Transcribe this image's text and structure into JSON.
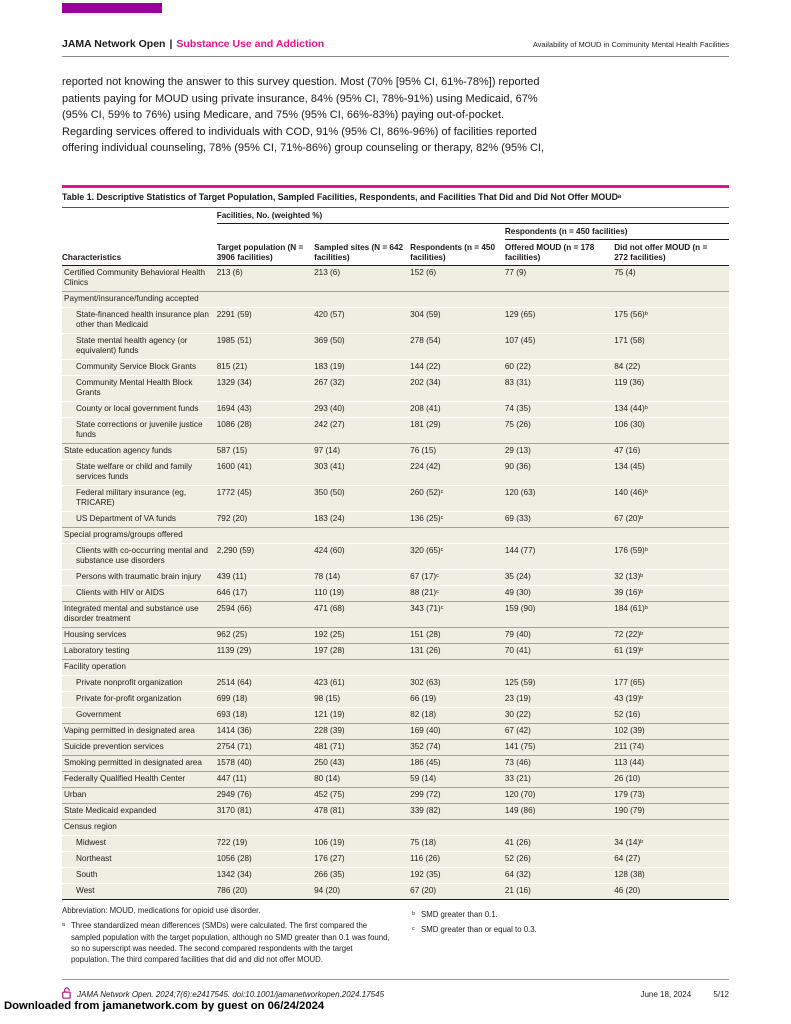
{
  "colors": {
    "brand_magenta": "#e0168c",
    "brand_purple": "#990098",
    "row_bg": "#efeee2"
  },
  "page": {
    "downloaded_note": "Downloaded from jamanetwork.com by guest on 06/24/2024"
  },
  "header": {
    "journal": "JAMA Network Open",
    "separator": "|",
    "section": "Substance Use and Addiction",
    "running_title": "Availability of MOUD in Community Mental Health Facilities"
  },
  "body_paragraph": {
    "lines": [
      "reported not knowing the answer to this survey question. Most (70% [95% CI, 61%-78%]) reported",
      "patients paying for MOUD using private insurance, 84% (95% CI, 78%-91%) using Medicaid, 67%",
      "(95% CI, 59% to 76%) using Medicare, and 75% (95% CI, 66%-83%) paying out-of-pocket.",
      "Regarding services offered to individuals with COD, 91% (95% CI, 86%-96%) of facilities reported",
      "offering individual counseling, 78% (95% CI, 71%-86%) group counseling or therapy, 82% (95% CI,"
    ]
  },
  "table": {
    "title": "Table 1. Descriptive Statistics of Target Population, Sampled Facilities, Respondents, and Facilities That Did and Did Not Offer MOUDᵃ",
    "col_group_header": "Facilities, No. (weighted %)",
    "sub_group_header": "Respondents (n = 450 facilities)",
    "columns": [
      "Characteristics",
      "Target population (N = 3906 facilities)",
      "Sampled sites (N = 642 facilities)",
      "Respondents (n = 450 facilities)",
      "Offered MOUD (n = 178 facilities)",
      "Did not offer MOUD (n = 272 facilities)"
    ],
    "rows": [
      {
        "type": "data",
        "indent": 0,
        "rule": "light",
        "label": "Certified Community Behavioral Health Clinics",
        "values": [
          "213 (6)",
          "213 (6)",
          "152 (6)",
          "77 (9)",
          "75 (4)"
        ]
      },
      {
        "type": "section",
        "rule": "dark",
        "label": "Payment/insurance/funding accepted"
      },
      {
        "type": "data",
        "indent": 1,
        "rule": "light",
        "label": "State-financed health insurance plan other than Medicaid",
        "values": [
          "2291 (59)",
          "420 (57)",
          "304 (59)",
          "129 (65)",
          "175 (56)ᵇ"
        ]
      },
      {
        "type": "data",
        "indent": 1,
        "rule": "light",
        "label": "State mental health agency (or equivalent) funds",
        "values": [
          "1985 (51)",
          "369 (50)",
          "278 (54)",
          "107 (45)",
          "171 (58)"
        ]
      },
      {
        "type": "data",
        "indent": 1,
        "rule": "light",
        "label": "Community Service Block Grants",
        "values": [
          "815 (21)",
          "183 (19)",
          "144 (22)",
          "60 (22)",
          "84 (22)"
        ]
      },
      {
        "type": "data",
        "indent": 1,
        "rule": "light",
        "label": "Community Mental Health Block Grants",
        "values": [
          "1329 (34)",
          "267 (32)",
          "202 (34)",
          "83 (31)",
          "119 (36)"
        ]
      },
      {
        "type": "data",
        "indent": 1,
        "rule": "light",
        "label": "County or local government funds",
        "values": [
          "1694 (43)",
          "293 (40)",
          "208 (41)",
          "74 (35)",
          "134 (44)ᵇ"
        ]
      },
      {
        "type": "data",
        "indent": 1,
        "rule": "light",
        "label": "State corrections or juvenile justice funds",
        "values": [
          "1086 (28)",
          "242 (27)",
          "181 (29)",
          "75 (26)",
          "106 (30)"
        ]
      },
      {
        "type": "data",
        "indent": 0,
        "rule": "dark",
        "label": "State education agency funds",
        "values": [
          "587 (15)",
          "97 (14)",
          "76 (15)",
          "29 (13)",
          "47 (16)"
        ]
      },
      {
        "type": "data",
        "indent": 1,
        "rule": "light",
        "label": "State welfare or child and family services funds",
        "values": [
          "1600 (41)",
          "303 (41)",
          "224 (42)",
          "90 (36)",
          "134 (45)"
        ]
      },
      {
        "type": "data",
        "indent": 1,
        "rule": "light",
        "label": "Federal military insurance (eg, TRICARE)",
        "values": [
          "1772 (45)",
          "350 (50)",
          "260 (52)ᶜ",
          "120 (63)",
          "140 (46)ᵇ"
        ]
      },
      {
        "type": "data",
        "indent": 1,
        "rule": "light",
        "label": "US Department of VA funds",
        "values": [
          "792 (20)",
          "183 (24)",
          "136 (25)ᶜ",
          "69 (33)",
          "67 (20)ᵇ"
        ]
      },
      {
        "type": "section",
        "rule": "dark",
        "label": "Special programs/groups offered"
      },
      {
        "type": "data",
        "indent": 1,
        "rule": "light",
        "label": "Clients with co-occurring mental and substance use disorders",
        "values": [
          "2,290 (59)",
          "424 (60)",
          "320 (65)ᶜ",
          "144 (77)",
          "176 (59)ᵇ"
        ]
      },
      {
        "type": "data",
        "indent": 1,
        "rule": "light",
        "label": "Persons with traumatic brain injury",
        "values": [
          "439 (11)",
          "78 (14)",
          "67 (17)ᶜ",
          "35 (24)",
          "32 (13)ᵇ"
        ]
      },
      {
        "type": "data",
        "indent": 1,
        "rule": "light",
        "label": "Clients with HIV or AIDS",
        "values": [
          "646 (17)",
          "110 (19)",
          "88 (21)ᶜ",
          "49 (30)",
          "39 (16)ᵇ"
        ]
      },
      {
        "type": "data",
        "indent": 0,
        "rule": "dark",
        "label": "Integrated mental and substance use disorder treatment",
        "values": [
          "2594 (66)",
          "471 (68)",
          "343 (71)ᶜ",
          "159 (90)",
          "184 (61)ᵇ"
        ]
      },
      {
        "type": "data",
        "indent": 0,
        "rule": "dark",
        "label": "Housing services",
        "values": [
          "962 (25)",
          "192 (25)",
          "151 (28)",
          "79 (40)",
          "72 (22)ᵇ"
        ]
      },
      {
        "type": "data",
        "indent": 0,
        "rule": "dark",
        "label": "Laboratory testing",
        "values": [
          "1139 (29)",
          "197 (28)",
          "131 (26)",
          "70 (41)",
          "61 (19)ᵇ"
        ]
      },
      {
        "type": "section",
        "rule": "dark",
        "label": "Facility operation"
      },
      {
        "type": "data",
        "indent": 1,
        "rule": "light",
        "label": "Private nonprofit organization",
        "values": [
          "2514 (64)",
          "423 (61)",
          "302 (63)",
          "125 (59)",
          "177 (65)"
        ]
      },
      {
        "type": "data",
        "indent": 1,
        "rule": "light",
        "label": "Private for-profit organization",
        "values": [
          "699 (18)",
          "98 (15)",
          "66 (19)",
          "23 (19)",
          "43 (19)ᵇ"
        ]
      },
      {
        "type": "data",
        "indent": 1,
        "rule": "light",
        "label": "Government",
        "values": [
          "693 (18)",
          "121 (19)",
          "82 (18)",
          "30 (22)",
          "52 (16)"
        ]
      },
      {
        "type": "data",
        "indent": 0,
        "rule": "dark",
        "label": "Vaping permitted in designated area",
        "values": [
          "1414 (36)",
          "228 (39)",
          "169 (40)",
          "67 (42)",
          "102 (39)"
        ]
      },
      {
        "type": "data",
        "indent": 0,
        "rule": "dark",
        "label": "Suicide prevention services",
        "values": [
          "2754 (71)",
          "481 (71)",
          "352 (74)",
          "141 (75)",
          "211 (74)"
        ]
      },
      {
        "type": "data",
        "indent": 0,
        "rule": "dark",
        "label": "Smoking permitted in designated area",
        "values": [
          "1578 (40)",
          "250 (43)",
          "186 (45)",
          "73 (46)",
          "113 (44)"
        ]
      },
      {
        "type": "data",
        "indent": 0,
        "rule": "dark",
        "label": "Federally Qualified Health Center",
        "values": [
          "447 (11)",
          "80 (14)",
          "59 (14)",
          "33 (21)",
          "26 (10)"
        ]
      },
      {
        "type": "data",
        "indent": 0,
        "rule": "dark",
        "label": "Urban",
        "values": [
          "2949 (76)",
          "452 (75)",
          "299 (72)",
          "120 (70)",
          "179 (73)"
        ]
      },
      {
        "type": "data",
        "indent": 0,
        "rule": "dark",
        "label": "State Medicaid expanded",
        "values": [
          "3170 (81)",
          "478 (81)",
          "339 (82)",
          "149 (86)",
          "190 (79)"
        ]
      },
      {
        "type": "section",
        "rule": "dark",
        "label": "Census region"
      },
      {
        "type": "data",
        "indent": 1,
        "rule": "light",
        "label": "Midwest",
        "values": [
          "722 (19)",
          "106 (19)",
          "75 (18)",
          "41 (26)",
          "34 (14)ᵇ"
        ]
      },
      {
        "type": "data",
        "indent": 1,
        "rule": "light",
        "label": "Northeast",
        "values": [
          "1056 (28)",
          "176 (27)",
          "116 (26)",
          "52 (26)",
          "64 (27)"
        ]
      },
      {
        "type": "data",
        "indent": 1,
        "rule": "light",
        "label": "South",
        "values": [
          "1342 (34)",
          "266 (35)",
          "192 (35)",
          "64 (32)",
          "128 (38)"
        ]
      },
      {
        "type": "data",
        "indent": 1,
        "rule": "light",
        "label": "West",
        "values": [
          "786 (20)",
          "94 (20)",
          "67 (20)",
          "21 (16)",
          "46 (20)"
        ]
      }
    ],
    "footnotes": {
      "abbreviation": "Abbreviation: MOUD, medications for opioid use disorder.",
      "a_marker": "ᵃ",
      "a": "Three standardized mean differences (SMDs) were calculated. The first compared the sampled population with the target population, although no SMD greater than 0.1 was found, so no superscript was needed. The second compared respondents with the target population. The third compared facilities that did and did not offer MOUD.",
      "b_marker": "ᵇ",
      "b": "SMD greater than 0.1.",
      "c_marker": "ᶜ",
      "c": "SMD greater than or equal to 0.3."
    }
  },
  "footer": {
    "citation": "JAMA Network Open. 2024;7(6):e2417545. doi:10.1001/jamanetworkopen.2024.17545",
    "date": "June 18, 2024",
    "page": "5/12"
  }
}
